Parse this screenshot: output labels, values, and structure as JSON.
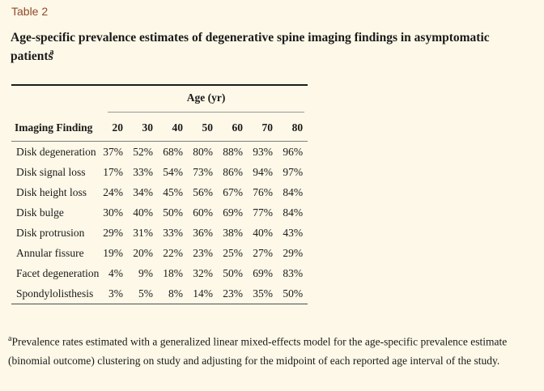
{
  "header": {
    "label": "Table 2",
    "title": "Age-specific prevalence estimates of degenerative spine imaging findings in asymptomatic patients",
    "title_superscript": "a"
  },
  "table": {
    "age_group_label": "Age (yr)",
    "row_header": "Imaging Finding",
    "age_columns": [
      "20",
      "30",
      "40",
      "50",
      "60",
      "70",
      "80"
    ],
    "rows": [
      {
        "label": "Disk degeneration",
        "values": [
          "37%",
          "52%",
          "68%",
          "80%",
          "88%",
          "93%",
          "96%"
        ]
      },
      {
        "label": "Disk signal loss",
        "values": [
          "17%",
          "33%",
          "54%",
          "73%",
          "86%",
          "94%",
          "97%"
        ]
      },
      {
        "label": "Disk height loss",
        "values": [
          "24%",
          "34%",
          "45%",
          "56%",
          "67%",
          "76%",
          "84%"
        ]
      },
      {
        "label": "Disk bulge",
        "values": [
          "30%",
          "40%",
          "50%",
          "60%",
          "69%",
          "77%",
          "84%"
        ]
      },
      {
        "label": "Disk protrusion",
        "values": [
          "29%",
          "31%",
          "33%",
          "36%",
          "38%",
          "40%",
          "43%"
        ]
      },
      {
        "label": "Annular fissure",
        "values": [
          "19%",
          "20%",
          "22%",
          "23%",
          "25%",
          "27%",
          "29%"
        ]
      },
      {
        "label": "Facet degeneration",
        "values": [
          "4%",
          "9%",
          "18%",
          "32%",
          "50%",
          "69%",
          "83%"
        ]
      },
      {
        "label": "Spondylolisthesis",
        "values": [
          "3%",
          "5%",
          "8%",
          "14%",
          "23%",
          "35%",
          "50%"
        ]
      }
    ]
  },
  "footnote": {
    "marker": "a",
    "text": "Prevalence rates estimated with a generalized linear mixed-effects model for the age-specific prevalence estimate (binomial outcome) clustering on study and adjusting for the midpoint of each reported age interval of the study."
  },
  "colors": {
    "background": "#fdf8e7",
    "table_label_accent": "#8e4a2c",
    "text": "#1a1a1a",
    "rule_top": "#1c1c1c",
    "rule_header": "#7e7e7e",
    "rule_age_underline": "#999999",
    "rule_bottom": "#4e4e4e"
  }
}
